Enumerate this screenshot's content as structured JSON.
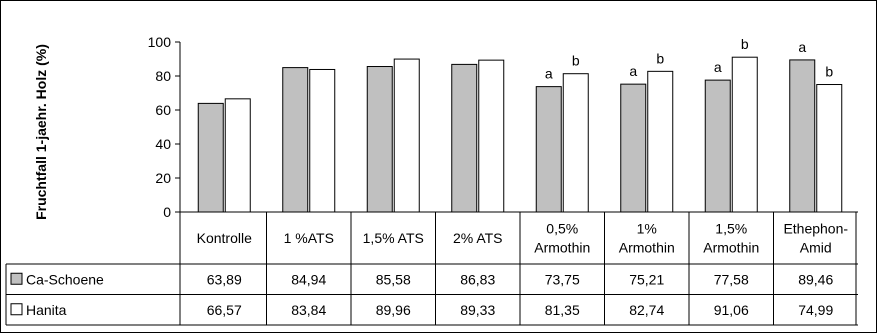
{
  "chart_data": {
    "type": "bar",
    "ylabel": "Fruchtfall 1-jaehr. Holz (%)",
    "ylim": [
      0,
      100
    ],
    "yticks": [
      0,
      20,
      40,
      60,
      80,
      100
    ],
    "categories": [
      [
        "Kontrolle"
      ],
      [
        "1 %ATS"
      ],
      [
        "1,5% ATS"
      ],
      [
        "2% ATS"
      ],
      [
        "0,5%",
        "Armothin"
      ],
      [
        "1%",
        "Armothin"
      ],
      [
        "1,5%",
        "Armothin"
      ],
      [
        "Ethephon-",
        "Amid"
      ]
    ],
    "series": [
      {
        "name": "Ca-Schoene",
        "color": "#c0c0c0",
        "values": [
          63.89,
          84.94,
          85.58,
          86.83,
          73.75,
          75.21,
          77.58,
          89.46
        ],
        "labels": [
          "63,89",
          "84,94",
          "85,58",
          "86,83",
          "73,75",
          "75,21",
          "77,58",
          "89,46"
        ],
        "letters": [
          "",
          "",
          "",
          "",
          "a",
          "a",
          "a",
          "a"
        ]
      },
      {
        "name": "Hanita",
        "color": "#ffffff",
        "values": [
          66.57,
          83.84,
          89.96,
          89.33,
          81.35,
          82.74,
          91.06,
          74.99
        ],
        "labels": [
          "66,57",
          "83,84",
          "89,96",
          "89,33",
          "81,35",
          "82,74",
          "91,06",
          "74,99"
        ],
        "letters": [
          "",
          "",
          "",
          "",
          "b",
          "b",
          "b",
          "b"
        ]
      }
    ],
    "legend": "table-rows",
    "grid": false
  }
}
